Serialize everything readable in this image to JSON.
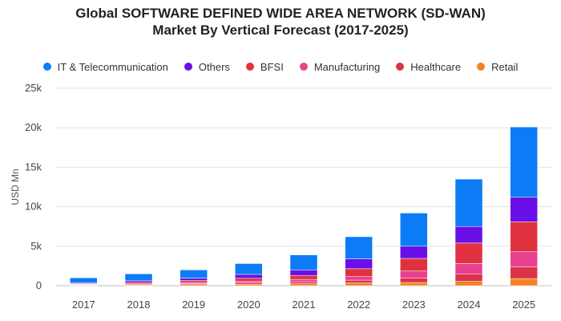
{
  "title_line1": "Global SOFTWARE DEFINED WIDE AREA NETWORK (SD-WAN)",
  "title_line2": "Market By Vertical Forecast (2017-2025)",
  "chart_data": {
    "type": "bar",
    "stacked": true,
    "title": "Global SOFTWARE DEFINED WIDE AREA NETWORK (SD-WAN) Market By Vertical Forecast (2017-2025)",
    "xlabel": "",
    "ylabel": "USD Mn",
    "ylim": [
      0,
      25000
    ],
    "yticks": [
      0,
      5000,
      10000,
      15000,
      20000,
      25000
    ],
    "ytick_labels": [
      "0",
      "5k",
      "10k",
      "15k",
      "20k",
      "25k"
    ],
    "grid": true,
    "legend_position": "top",
    "categories": [
      "2017",
      "2018",
      "2019",
      "2020",
      "2021",
      "2022",
      "2023",
      "2024",
      "2025"
    ],
    "series": [
      {
        "name": "Retail",
        "color": "#f5821f",
        "values": [
          60,
          90,
          130,
          180,
          250,
          350,
          400,
          550,
          900
        ]
      },
      {
        "name": "Healthcare",
        "color": "#d9334a",
        "values": [
          60,
          90,
          130,
          180,
          250,
          350,
          550,
          950,
          1500
        ]
      },
      {
        "name": "Manufacturing",
        "color": "#e8418f",
        "values": [
          60,
          100,
          150,
          220,
          300,
          450,
          900,
          1300,
          1900
        ]
      },
      {
        "name": "BFSI",
        "color": "#e0323e",
        "values": [
          80,
          150,
          250,
          350,
          500,
          1000,
          1600,
          2600,
          3800
        ]
      },
      {
        "name": "Others",
        "color": "#6a0fe8",
        "values": [
          100,
          200,
          300,
          500,
          700,
          1250,
          1550,
          2100,
          3100
        ]
      },
      {
        "name": "IT & Telecommunication",
        "color": "#0b7cf5",
        "values": [
          640,
          870,
          1040,
          1370,
          1900,
          2800,
          4200,
          6000,
          8900
        ]
      }
    ]
  },
  "legend": [
    {
      "label": "IT & Telecommunication",
      "color": "#0b7cf5"
    },
    {
      "label": "Others",
      "color": "#6a0fe8"
    },
    {
      "label": "BFSI",
      "color": "#e0323e"
    },
    {
      "label": "Manufacturing",
      "color": "#e8418f"
    },
    {
      "label": "Healthcare",
      "color": "#d9334a"
    },
    {
      "label": "Retail",
      "color": "#f5821f"
    }
  ]
}
